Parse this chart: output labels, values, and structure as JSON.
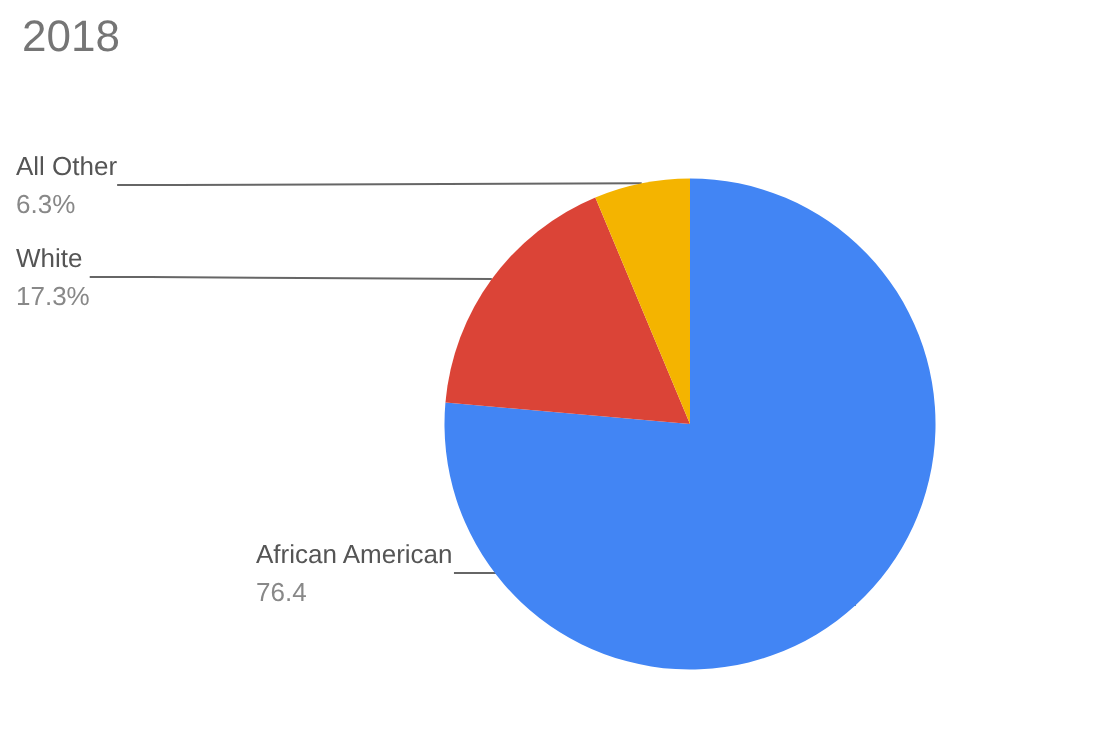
{
  "chart_data": {
    "type": "pie",
    "title": "2018",
    "categories": [
      "African American",
      "White",
      "All Other"
    ],
    "values": [
      76.4,
      17.3,
      6.3
    ],
    "colors": [
      "#4285f4",
      "#db4437",
      "#f4b400"
    ],
    "value_labels": [
      "76.4",
      "17.3%",
      "6.3%"
    ],
    "legend": false
  }
}
